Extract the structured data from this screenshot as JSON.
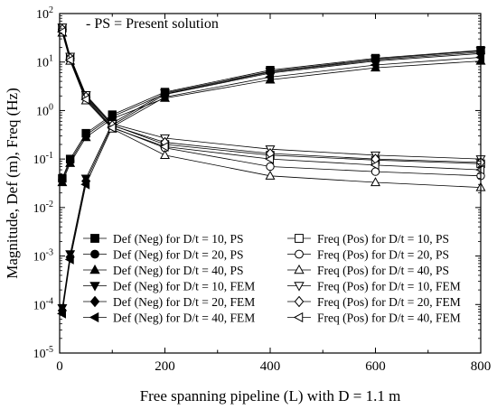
{
  "chart_data": {
    "type": "line",
    "title": "",
    "xlabel": "Free spanning pipeline (L) with D = 1.1 m",
    "ylabel": "Magnitude, Def (m), Freq (Hz)",
    "xscale": "linear",
    "yscale": "log",
    "xlim": [
      0,
      800
    ],
    "ylim": [
      1e-05,
      100
    ],
    "grid": false,
    "legend_position": "bottom-center",
    "annotations": [
      "- PS = Present solution"
    ],
    "x_tick_labels": [
      "0",
      "200",
      "400",
      "600",
      "800"
    ],
    "y_tick_labels": [
      "10^-5",
      "10^-4",
      "10^-3",
      "10^-2",
      "10^-1",
      "10^0",
      "10^1",
      "10^2"
    ],
    "x": [
      5,
      20,
      50,
      100,
      200,
      400,
      600,
      800
    ],
    "series": [
      {
        "name": "Def (Neg) for D/t = 10, PS",
        "marker": "square",
        "filled": true,
        "values": [
          0.04,
          0.1,
          0.34,
          0.82,
          2.4,
          6.8,
          12.0,
          17.5
        ]
      },
      {
        "name": "Def (Neg) for D/t = 20, PS",
        "marker": "circle",
        "filled": true,
        "values": [
          0.037,
          0.09,
          0.31,
          0.75,
          2.2,
          6.2,
          11.0,
          16.0
        ]
      },
      {
        "name": "Def (Neg) for D/t = 40, PS",
        "marker": "triangle-up",
        "filled": true,
        "values": [
          0.033,
          0.082,
          0.28,
          0.68,
          1.8,
          4.3,
          7.6,
          10.5
        ]
      },
      {
        "name": "Def (Neg) for D/t = 10, FEM",
        "marker": "triangle-down",
        "filled": true,
        "values": [
          8.5e-05,
          0.0011,
          0.04,
          0.55,
          2.3,
          6.4,
          11.5,
          17.0
        ]
      },
      {
        "name": "Def (Neg) for D/t = 20, FEM",
        "marker": "diamond",
        "filled": true,
        "values": [
          7.5e-05,
          0.00095,
          0.035,
          0.5,
          2.15,
          5.9,
          10.5,
          15.0
        ]
      },
      {
        "name": "Def (Neg) for D/t = 40, FEM",
        "marker": "triangle-left",
        "filled": true,
        "values": [
          6.5e-05,
          0.00085,
          0.03,
          0.46,
          1.9,
          4.9,
          8.7,
          12.5
        ]
      },
      {
        "name": "Freq (Pos) for D/t = 10, PS",
        "marker": "square",
        "filled": false,
        "values": [
          50.0,
          12.5,
          2.0,
          0.5,
          0.2,
          0.12,
          0.095,
          0.08
        ]
      },
      {
        "name": "Freq (Pos) for D/t = 20, PS",
        "marker": "circle",
        "filled": false,
        "values": [
          45.0,
          11.5,
          1.8,
          0.45,
          0.17,
          0.07,
          0.055,
          0.045
        ]
      },
      {
        "name": "Freq (Pos) for D/t = 40, PS",
        "marker": "triangle-up",
        "filled": false,
        "values": [
          40.0,
          10.5,
          1.6,
          0.42,
          0.12,
          0.045,
          0.033,
          0.026
        ]
      },
      {
        "name": "Freq (Pos) for D/t = 10, FEM",
        "marker": "triangle-down",
        "filled": false,
        "values": [
          52.0,
          13.0,
          2.1,
          0.53,
          0.27,
          0.16,
          0.12,
          0.1
        ]
      },
      {
        "name": "Freq (Pos) for D/t = 20, FEM",
        "marker": "diamond",
        "filled": false,
        "values": [
          47.0,
          12.0,
          1.9,
          0.49,
          0.22,
          0.13,
          0.1,
          0.085
        ]
      },
      {
        "name": "Freq (Pos) for D/t = 40, FEM",
        "marker": "triangle-left",
        "filled": false,
        "values": [
          42.0,
          11.0,
          1.7,
          0.44,
          0.18,
          0.1,
          0.075,
          0.06
        ]
      }
    ]
  }
}
